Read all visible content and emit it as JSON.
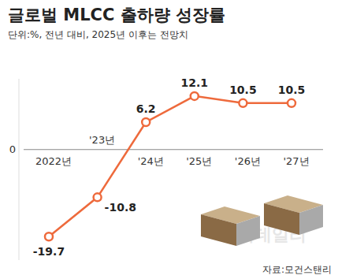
{
  "chart_data": {
    "type": "line",
    "title": "글로벌 MLCC 출하량 성장률",
    "subtitle": "단위:%, 전년 대비, 2025년 이후는 전망치",
    "source": "자료:모건스탠리",
    "watermark": "이데일리",
    "categories": [
      "2022년",
      "'23년",
      "'24년",
      "'25년",
      "'26년",
      "'27년"
    ],
    "values": [
      -19.7,
      -10.8,
      6.2,
      12.1,
      10.5,
      10.5
    ],
    "color": "#ee6a3c",
    "marker": "circle",
    "ylim": [
      -25,
      16
    ],
    "yticks": [
      0
    ],
    "data_labels": true
  }
}
